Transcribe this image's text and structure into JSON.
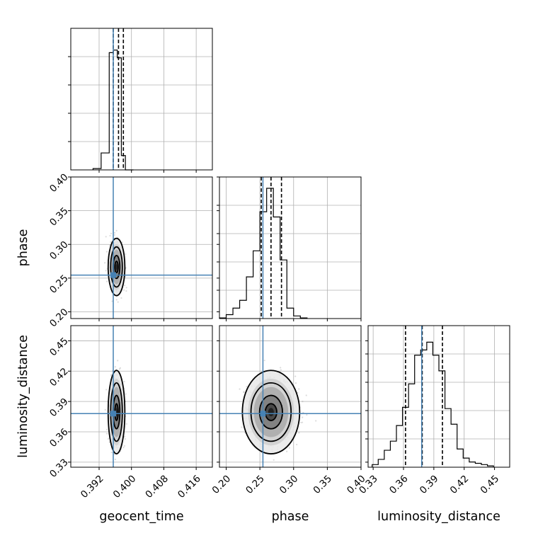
{
  "chart_data": {
    "type": "corner",
    "parameters": [
      "geocent_time",
      "phase",
      "luminosity_distance"
    ],
    "axes": {
      "geocent_time": {
        "range": [
          0.385,
          0.42
        ],
        "ticks": [
          0.392,
          0.4,
          0.408,
          0.416
        ],
        "tick_labels": [
          "0.392",
          "0.400",
          "0.408",
          "0.416"
        ]
      },
      "phase": {
        "range": [
          0.19,
          0.4
        ],
        "ticks": [
          0.2,
          0.25,
          0.3,
          0.35,
          0.4
        ],
        "tick_labels": [
          "0.20",
          "0.25",
          "0.30",
          "0.35",
          "0.40"
        ]
      },
      "luminosity_distance": {
        "range": [
          0.325,
          0.465
        ],
        "ticks": [
          0.33,
          0.36,
          0.39,
          0.42,
          0.45
        ],
        "tick_labels": [
          "0.33",
          "0.36",
          "0.39",
          "0.42",
          "0.45"
        ]
      }
    },
    "truths": {
      "geocent_time": 0.3955,
      "phase": 0.2545,
      "luminosity_distance": 0.378
    },
    "truth_color": "#4682b4",
    "quantiles": {
      "geocent_time": [
        0.3955,
        0.3968,
        0.398
      ],
      "phase": [
        0.252,
        0.2665,
        0.282
      ],
      "luminosity_distance": [
        0.362,
        0.3785,
        0.3985
      ]
    },
    "histograms": {
      "geocent_time": {
        "edges": [
          0.3905,
          0.3925,
          0.3945,
          0.3955,
          0.3965,
          0.3975,
          0.3985,
          0.4005
        ],
        "counts": [
          0.01,
          0.13,
          0.9,
          0.92,
          0.86,
          0.11,
          0.0
        ]
      },
      "phase": {
        "edges": [
          0.19,
          0.2,
          0.21,
          0.22,
          0.23,
          0.24,
          0.25,
          0.26,
          0.27,
          0.28,
          0.29,
          0.3,
          0.31,
          0.32
        ],
        "counts": [
          0.005,
          0.03,
          0.08,
          0.14,
          0.32,
          0.52,
          0.82,
          1.0,
          0.78,
          0.45,
          0.08,
          0.02,
          0.005
        ]
      },
      "luminosity_distance": {
        "edges": [
          0.329,
          0.335,
          0.341,
          0.347,
          0.353,
          0.359,
          0.365,
          0.371,
          0.377,
          0.383,
          0.389,
          0.395,
          0.401,
          0.407,
          0.413,
          0.419,
          0.425,
          0.431,
          0.437,
          0.443,
          0.449
        ],
        "counts": [
          0.02,
          0.06,
          0.13,
          0.2,
          0.32,
          0.46,
          0.64,
          0.86,
          0.9,
          0.96,
          0.86,
          0.74,
          0.45,
          0.33,
          0.14,
          0.07,
          0.04,
          0.03,
          0.02,
          0.01
        ]
      }
    },
    "grid": true
  }
}
